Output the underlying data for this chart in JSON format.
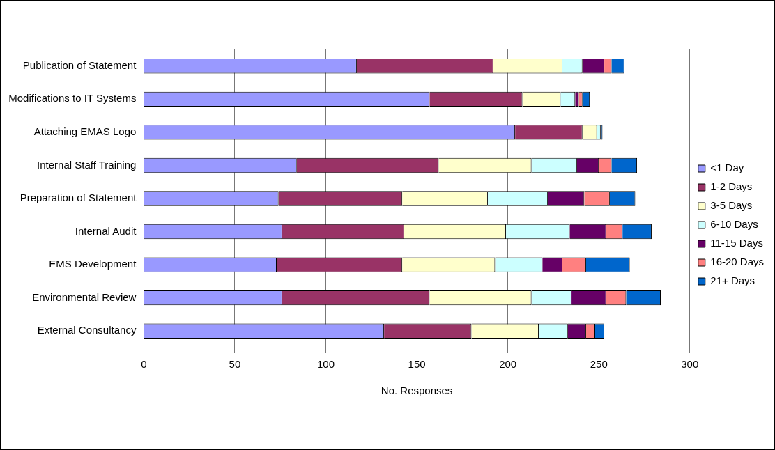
{
  "chart_data": {
    "type": "bar",
    "orientation": "horizontal",
    "stacked": true,
    "xlabel": "No. Responses",
    "categories": [
      "Publication of Statement",
      "Modifications to IT Systems",
      "Attaching EMAS Logo",
      "Internal Staff Training",
      "Preparation of Statement",
      "Internal Audit",
      "EMS Development",
      "Environmental Review",
      "External Consultancy"
    ],
    "series": [
      {
        "name": "<1 Day",
        "color": "#9999ff",
        "values": [
          117,
          157,
          204,
          84,
          74,
          76,
          73,
          76,
          132
        ]
      },
      {
        "name": "1-2 Days",
        "color": "#993366",
        "values": [
          75,
          51,
          37,
          78,
          68,
          67,
          69,
          81,
          48
        ]
      },
      {
        "name": "3-5 Days",
        "color": "#ffffcc",
        "values": [
          38,
          21,
          8,
          51,
          47,
          56,
          51,
          56,
          37
        ]
      },
      {
        "name": "6-10 Days",
        "color": "#ccffff",
        "values": [
          11,
          8,
          2,
          25,
          33,
          35,
          26,
          22,
          16
        ]
      },
      {
        "name": "11-15 Days",
        "color": "#660066",
        "values": [
          12,
          2,
          0,
          12,
          20,
          20,
          11,
          19,
          10
        ]
      },
      {
        "name": "16-20 Days",
        "color": "#ff8080",
        "values": [
          4,
          2,
          0,
          7,
          14,
          9,
          13,
          11,
          5
        ]
      },
      {
        "name": "21+ Days",
        "color": "#0066cc",
        "values": [
          7,
          4,
          1,
          14,
          14,
          16,
          24,
          19,
          5
        ]
      }
    ],
    "xlim": [
      0,
      300
    ],
    "xticks": [
      0,
      50,
      100,
      150,
      200,
      250,
      300
    ],
    "grid": "x",
    "legend": "right"
  }
}
